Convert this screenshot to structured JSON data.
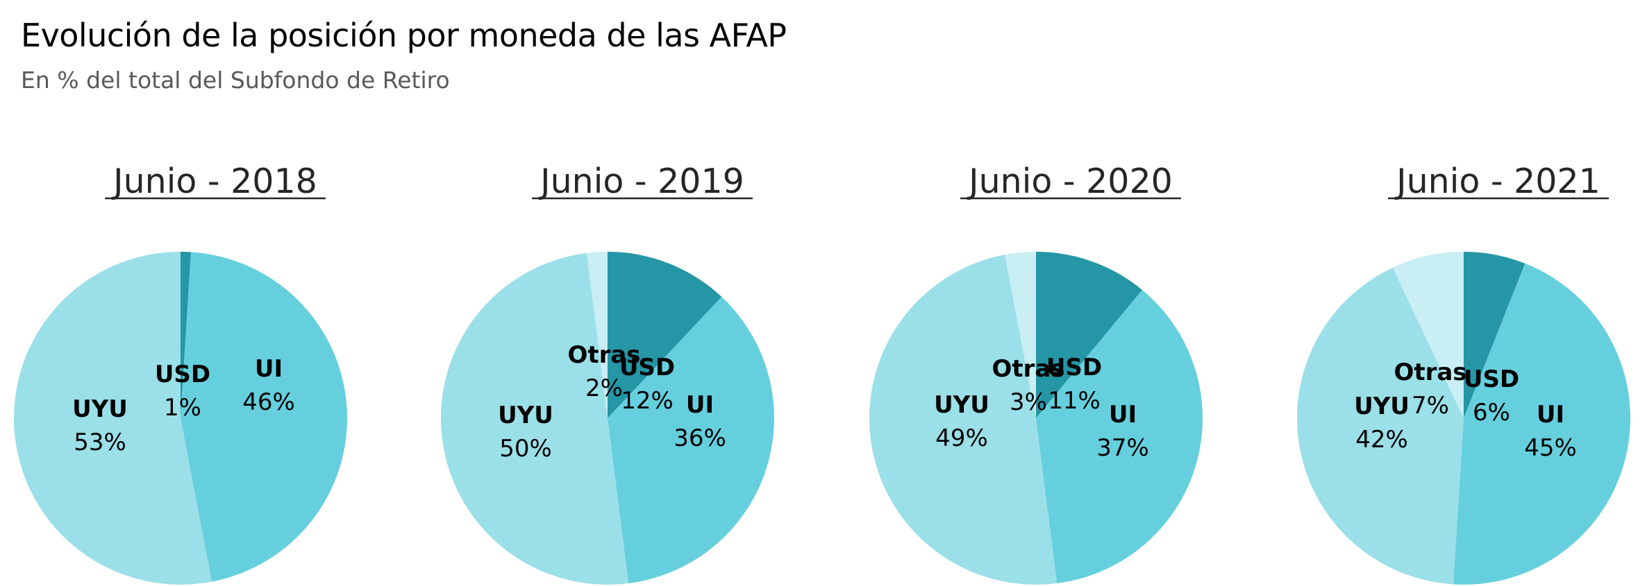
{
  "title": "Evolución de la posición por moneda de las AFAP",
  "subtitle": "En % del total del Subfondo de Retiro",
  "colors": {
    "USD": "#2596a6",
    "UI": "#66cfdd",
    "UYU": "#9bdfe8",
    "Otras": "#c9eef3"
  },
  "chart_data": [
    {
      "type": "pie",
      "title": "Junio - 2018",
      "slices": [
        {
          "label": "USD",
          "value": 1,
          "value_label": "1%"
        },
        {
          "label": "UI",
          "value": 46,
          "value_label": "46%"
        },
        {
          "label": "UYU",
          "value": 53,
          "value_label": "53%"
        }
      ]
    },
    {
      "type": "pie",
      "title": "Junio - 2019",
      "slices": [
        {
          "label": "USD",
          "value": 12,
          "value_label": "12%"
        },
        {
          "label": "UI",
          "value": 36,
          "value_label": "36%"
        },
        {
          "label": "UYU",
          "value": 50,
          "value_label": "50%"
        },
        {
          "label": "Otras",
          "value": 2,
          "value_label": "2%"
        }
      ]
    },
    {
      "type": "pie",
      "title": "Junio - 2020",
      "slices": [
        {
          "label": "USD",
          "value": 11,
          "value_label": "11%"
        },
        {
          "label": "UI",
          "value": 37,
          "value_label": "37%"
        },
        {
          "label": "UYU",
          "value": 49,
          "value_label": "49%"
        },
        {
          "label": "Otras",
          "value": 3,
          "value_label": "3%"
        }
      ]
    },
    {
      "type": "pie",
      "title": "Junio - 2021",
      "slices": [
        {
          "label": "USD",
          "value": 6,
          "value_label": "6%"
        },
        {
          "label": "UI",
          "value": 45,
          "value_label": "45%"
        },
        {
          "label": "UYU",
          "value": 42,
          "value_label": "42%"
        },
        {
          "label": "Otras",
          "value": 7,
          "value_label": "7%"
        }
      ]
    }
  ]
}
